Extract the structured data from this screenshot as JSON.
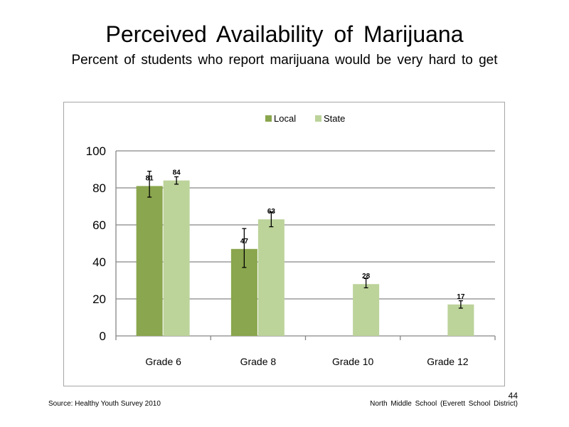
{
  "slide": {
    "title": "Perceived  Availability  of Marijuana",
    "subtitle": "Percent of students  who  report marijuana  would be very hard to get",
    "source": "Source: Healthy Youth Survey 2010",
    "school": "North Middle  School (Everett School District)",
    "page_number": "44"
  },
  "chart_data": {
    "type": "bar",
    "title": "",
    "xlabel": "",
    "ylabel": "",
    "ylim": [
      0,
      100
    ],
    "yticks": [
      0,
      20,
      40,
      60,
      80,
      100
    ],
    "grid": true,
    "legend_position": "top",
    "categories": [
      "Grade 6",
      "Grade 8",
      "Grade 10",
      "Grade 12"
    ],
    "series": [
      {
        "name": "Local",
        "color": "#8aa64e",
        "values": [
          81,
          47,
          null,
          null
        ],
        "labels": [
          "81",
          "47",
          "",
          ""
        ],
        "error_low": [
          75,
          37,
          null,
          null
        ],
        "error_high": [
          89,
          58,
          null,
          null
        ]
      },
      {
        "name": "State",
        "color": "#bcd39a",
        "values": [
          84,
          63,
          28,
          17
        ],
        "labels": [
          "84",
          "63",
          "28",
          "17"
        ],
        "error_low": [
          82,
          59,
          26,
          15
        ],
        "error_high": [
          86,
          67,
          31,
          19
        ]
      }
    ]
  }
}
